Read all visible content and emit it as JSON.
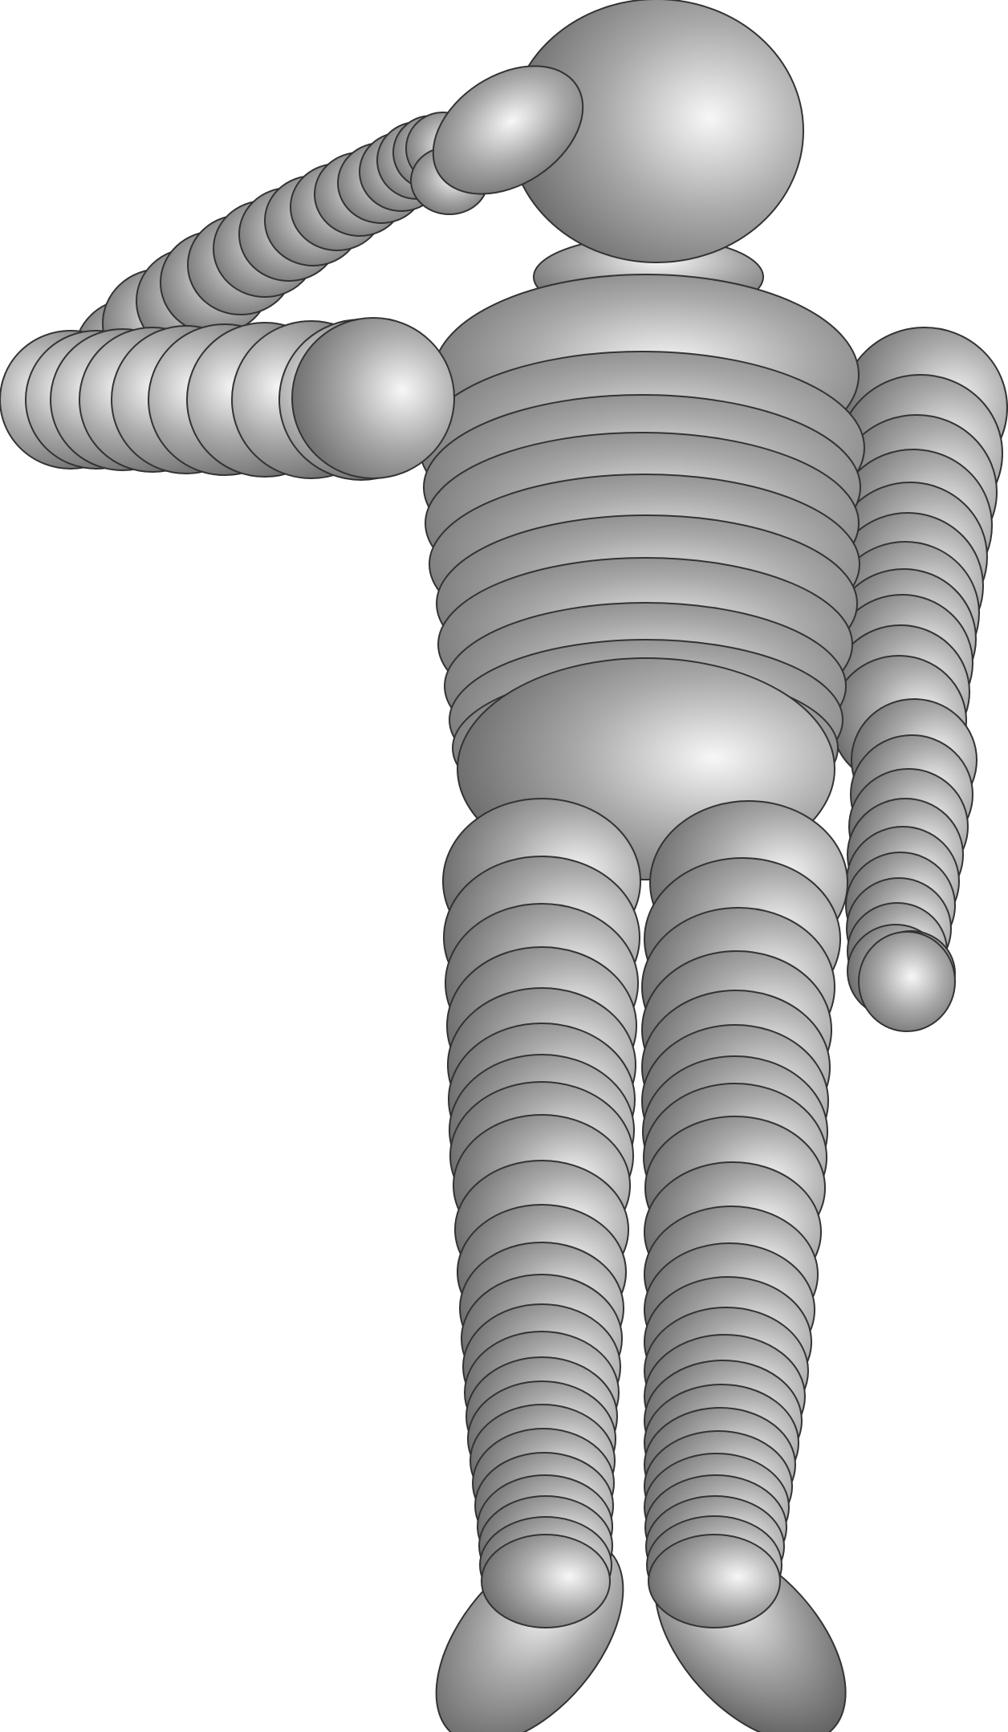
{
  "scene": {
    "subject": "saluting-figure",
    "colors": {
      "background": "#ffffff",
      "highlight": "#f7f7f7",
      "mid": "#a9a9a9",
      "shadow": "#5a5a5a",
      "outline": "#333333"
    }
  }
}
